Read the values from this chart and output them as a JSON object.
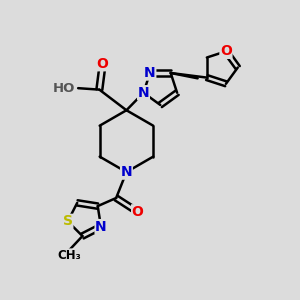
{
  "background_color": "#dcdcdc",
  "bond_color": "#000000",
  "bond_width": 1.8,
  "atom_colors": {
    "C": "#000000",
    "N": "#0000cc",
    "O": "#ee0000",
    "S": "#bbbb00",
    "H": "#555555"
  },
  "font_size_atom": 10,
  "fig_width": 3.0,
  "fig_height": 3.0,
  "dpi": 100
}
